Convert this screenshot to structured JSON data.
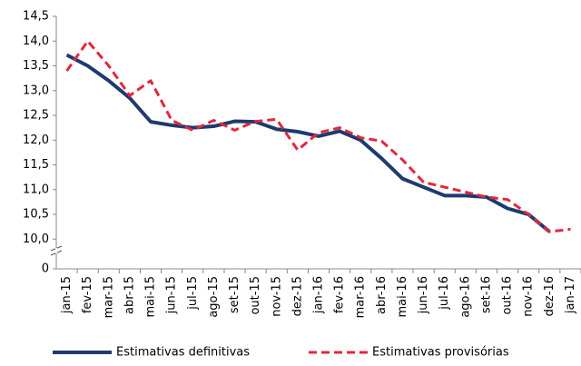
{
  "chart_data": {
    "type": "line",
    "categories": [
      "jan-15",
      "fev-15",
      "mar-15",
      "abr-15",
      "mai-15",
      "jun-15",
      "jul-15",
      "ago-15",
      "set-15",
      "out-15",
      "nov-15",
      "dez-15",
      "jan-16",
      "fev-16",
      "mar-16",
      "abr-16",
      "mai-16",
      "jun-16",
      "jul-16",
      "ago-16",
      "set-16",
      "out-16",
      "nov-16",
      "dez-16",
      "jan-17"
    ],
    "series": [
      {
        "name": "Estimativas definitivas",
        "color": "#1f3a6e",
        "dashed": false,
        "values": [
          13.72,
          13.5,
          13.2,
          12.85,
          12.37,
          12.3,
          12.25,
          12.28,
          12.38,
          12.37,
          12.22,
          12.17,
          12.08,
          12.18,
          12.0,
          11.63,
          11.22,
          11.05,
          10.88,
          10.88,
          10.85,
          10.62,
          10.5,
          10.15,
          null
        ]
      },
      {
        "name": "Estimativas provisórias",
        "color": "#e0283c",
        "dashed": true,
        "values": [
          13.4,
          14.0,
          13.5,
          12.9,
          13.2,
          12.4,
          12.2,
          12.4,
          12.2,
          12.38,
          12.42,
          11.8,
          12.15,
          12.25,
          12.05,
          11.98,
          11.6,
          11.15,
          11.05,
          10.95,
          10.85,
          10.8,
          10.5,
          10.15,
          10.2
        ]
      }
    ],
    "ylim": [
      9.4,
      14.5
    ],
    "yticks": [
      {
        "value": 0,
        "label": "0"
      },
      {
        "value": 10,
        "label": "10,0"
      },
      {
        "value": 10.5,
        "label": "10,5"
      },
      {
        "value": 11,
        "label": "11,0"
      },
      {
        "value": 11.5,
        "label": "11,5"
      },
      {
        "value": 12,
        "label": "12,0"
      },
      {
        "value": 12.5,
        "label": "12,5"
      },
      {
        "value": 13,
        "label": "13,0"
      },
      {
        "value": 13.5,
        "label": "13,5"
      },
      {
        "value": 14,
        "label": "14,0"
      },
      {
        "value": 14.5,
        "label": "14,5"
      }
    ],
    "axis_break": true
  }
}
